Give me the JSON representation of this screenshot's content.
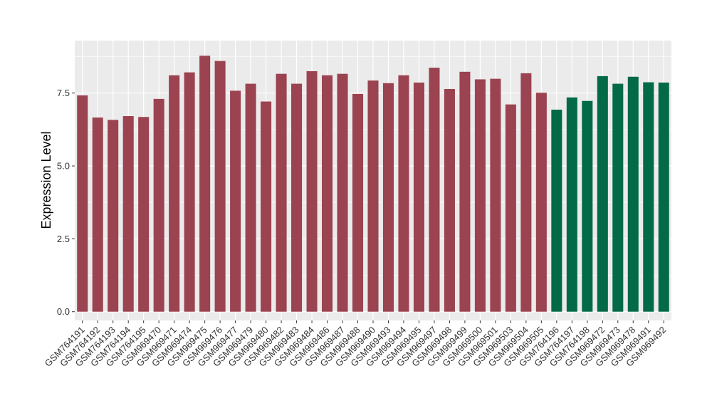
{
  "chart_data": {
    "type": "bar",
    "title": "",
    "xlabel": "",
    "ylabel": "Expression Level",
    "ylim": [
      -0.3,
      9.3
    ],
    "yticks": [
      0.0,
      2.5,
      5.0,
      7.5
    ],
    "ytick_labels": [
      "0.0",
      "2.5",
      "5.0",
      "7.5"
    ],
    "grid": true,
    "legend": "none",
    "colors": {
      "group_a": "#9B4350",
      "group_b": "#036A47",
      "panel": "#EBEBEB",
      "gridline": "#FFFFFF"
    },
    "categories": [
      "GSM764191",
      "GSM764192",
      "GSM764193",
      "GSM764194",
      "GSM764195",
      "GSM969470",
      "GSM969471",
      "GSM969474",
      "GSM969475",
      "GSM969476",
      "GSM969477",
      "GSM969479",
      "GSM969480",
      "GSM969482",
      "GSM969483",
      "GSM969484",
      "GSM969486",
      "GSM969487",
      "GSM969488",
      "GSM969490",
      "GSM969493",
      "GSM969494",
      "GSM969495",
      "GSM969497",
      "GSM969498",
      "GSM969499",
      "GSM969500",
      "GSM969501",
      "GSM969503",
      "GSM969504",
      "GSM969505",
      "GSM764196",
      "GSM764197",
      "GSM764198",
      "GSM969472",
      "GSM969473",
      "GSM969478",
      "GSM969491",
      "GSM969492"
    ],
    "values": [
      7.42,
      6.66,
      6.58,
      6.71,
      6.68,
      7.3,
      8.11,
      8.21,
      8.78,
      8.6,
      7.58,
      7.82,
      7.21,
      8.16,
      7.82,
      8.25,
      8.11,
      8.16,
      7.47,
      7.93,
      7.84,
      8.11,
      7.86,
      8.37,
      7.64,
      8.23,
      7.97,
      7.99,
      7.11,
      8.18,
      7.51,
      6.93,
      7.35,
      7.23,
      8.08,
      7.82,
      8.06,
      7.87,
      7.86
    ],
    "groups": [
      "a",
      "a",
      "a",
      "a",
      "a",
      "a",
      "a",
      "a",
      "a",
      "a",
      "a",
      "a",
      "a",
      "a",
      "a",
      "a",
      "a",
      "a",
      "a",
      "a",
      "a",
      "a",
      "a",
      "a",
      "a",
      "a",
      "a",
      "a",
      "a",
      "a",
      "a",
      "b",
      "b",
      "b",
      "b",
      "b",
      "b",
      "b",
      "b"
    ]
  }
}
